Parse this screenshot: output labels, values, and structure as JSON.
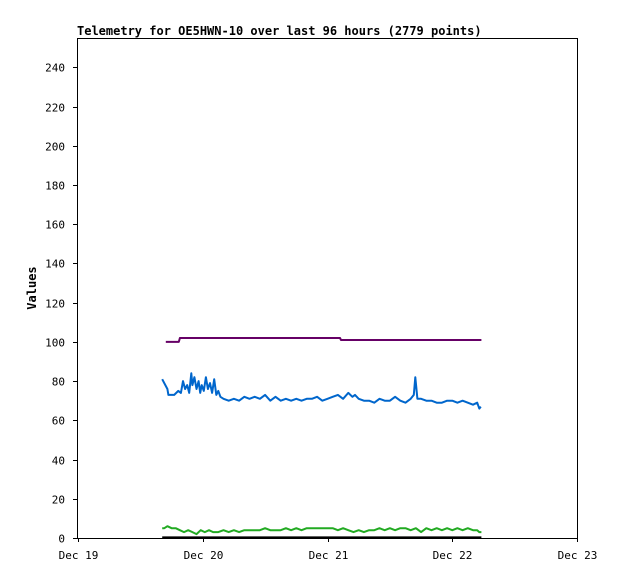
{
  "chart_data": {
    "type": "line",
    "title": "Telemetry for OE5HWN-10 over last 96 hours (2779 points)",
    "xlabel": "",
    "ylabel": "Values",
    "xlim": [
      0,
      96
    ],
    "ylim": [
      0,
      255
    ],
    "x_ticks": [
      {
        "label": "Dec 19",
        "value": 0
      },
      {
        "label": "Dec 20",
        "value": 24
      },
      {
        "label": "Dec 21",
        "value": 48
      },
      {
        "label": "Dec 22",
        "value": 72
      },
      {
        "label": "Dec 23",
        "value": 96
      }
    ],
    "y_ticks": [
      0,
      20,
      40,
      60,
      80,
      100,
      120,
      140,
      160,
      180,
      200,
      220,
      240
    ],
    "grid": false,
    "legend": "none",
    "series": [
      {
        "color": "#660066",
        "x": [
          16.9,
          19.4,
          19.6,
          50.4,
          50.6,
          77.6
        ],
        "y": [
          100,
          100,
          102,
          102,
          101,
          101
        ]
      },
      {
        "color": "#0066cc",
        "x": [
          16.2,
          17.2,
          17.4,
          18.5,
          19.3,
          19.8,
          20.2,
          20.6,
          21.0,
          21.4,
          21.8,
          22.0,
          22.4,
          22.8,
          23.2,
          23.5,
          23.8,
          24.2,
          24.6,
          25.0,
          25.4,
          25.8,
          26.2,
          26.6,
          27.0,
          27.4,
          28.0,
          29.0,
          30.0,
          31.0,
          32.0,
          33.0,
          34.0,
          35.0,
          36.0,
          37.0,
          38.0,
          39.0,
          40.0,
          41.0,
          42.0,
          43.0,
          44.0,
          45.0,
          46.0,
          47.0,
          48.0,
          49.0,
          50.0,
          51.0,
          52.0,
          52.8,
          53.3,
          54.0,
          55.0,
          56.0,
          57.0,
          58.0,
          59.0,
          60.0,
          61.0,
          62.0,
          63.0,
          64.0,
          64.6,
          64.9,
          65.3,
          66.0,
          67.0,
          68.0,
          69.0,
          70.0,
          71.0,
          72.0,
          73.0,
          74.0,
          75.0,
          76.0,
          76.8,
          77.2,
          77.5
        ],
        "y": [
          81,
          76,
          73,
          73,
          75,
          74,
          80,
          76,
          78,
          74,
          84,
          78,
          82,
          76,
          80,
          74,
          78,
          75,
          82,
          76,
          79,
          74,
          81,
          73,
          75,
          72,
          71,
          70,
          71,
          70,
          72,
          71,
          72,
          71,
          73,
          70,
          72,
          70,
          71,
          70,
          71,
          70,
          71,
          71,
          72,
          70,
          71,
          72,
          73,
          71,
          74,
          72,
          73,
          71,
          70,
          70,
          69,
          71,
          70,
          70,
          72,
          70,
          69,
          71,
          73,
          82,
          71,
          71,
          70,
          70,
          69,
          69,
          70,
          70,
          69,
          70,
          69,
          68,
          69,
          66,
          67
        ]
      },
      {
        "color": "#22aa22",
        "x": [
          16.2,
          16.6,
          17.2,
          18.0,
          18.8,
          19.6,
          20.4,
          21.2,
          22.0,
          22.8,
          23.6,
          24.4,
          25.2,
          26.0,
          27.0,
          28.0,
          29.0,
          30.0,
          31.0,
          32.0,
          33.0,
          34.0,
          35.0,
          36.0,
          37.0,
          38.0,
          39.0,
          40.0,
          41.0,
          42.0,
          43.0,
          44.0,
          45.0,
          46.0,
          47.0,
          48.0,
          49.0,
          50.0,
          51.0,
          52.0,
          53.0,
          54.0,
          55.0,
          56.0,
          57.0,
          58.0,
          59.0,
          60.0,
          61.0,
          62.0,
          63.0,
          64.0,
          65.0,
          66.0,
          67.0,
          68.0,
          69.0,
          70.0,
          71.0,
          72.0,
          73.0,
          74.0,
          75.0,
          76.0,
          76.8,
          77.2,
          77.6
        ],
        "y": [
          5,
          5,
          6,
          5,
          5,
          4,
          3,
          4,
          3,
          2,
          4,
          3,
          4,
          3,
          3,
          4,
          3,
          4,
          3,
          4,
          4,
          4,
          4,
          5,
          4,
          4,
          4,
          5,
          4,
          5,
          4,
          5,
          5,
          5,
          5,
          5,
          5,
          4,
          5,
          4,
          3,
          4,
          3,
          4,
          4,
          5,
          4,
          5,
          4,
          5,
          5,
          4,
          5,
          3,
          5,
          4,
          5,
          4,
          5,
          4,
          5,
          4,
          5,
          4,
          4,
          3,
          3
        ]
      },
      {
        "color": "#000000",
        "x": [
          16.2,
          77.6
        ],
        "y": [
          0.3,
          0.3
        ]
      }
    ]
  }
}
